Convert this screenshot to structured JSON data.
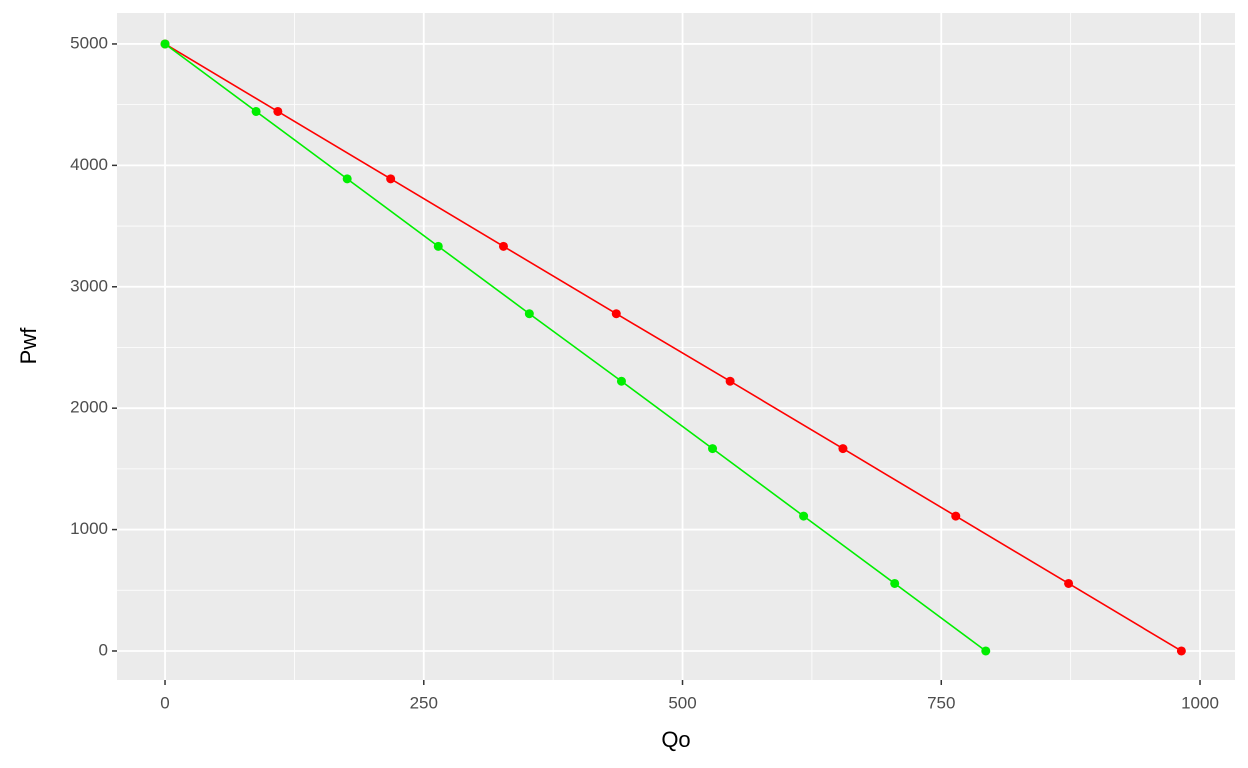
{
  "chart_data": {
    "type": "line",
    "x_label": "Qo",
    "y_label": "Pwf",
    "series": [
      {
        "color": "#ff0000",
        "x": [
          0,
          109,
          218,
          327,
          436,
          546,
          655,
          764,
          873,
          982
        ],
        "values": [
          5000,
          4444,
          3889,
          3333,
          2778,
          2222,
          1667,
          1111,
          556,
          0
        ]
      },
      {
        "color": "#00ee00",
        "x": [
          0,
          88,
          176,
          264,
          352,
          441,
          529,
          617,
          705,
          793
        ],
        "values": [
          5000,
          4444,
          3889,
          3333,
          2778,
          2222,
          1667,
          1111,
          556,
          0
        ]
      }
    ],
    "xlim": [
      -46.4,
      1033.8
    ],
    "ylim": [
      -239,
      5255
    ],
    "xticks": [
      0,
      250,
      500,
      750,
      1000
    ],
    "yticks": [
      0,
      1000,
      2000,
      3000,
      4000,
      5000
    ],
    "grid": true,
    "minor_grid": true,
    "markers": true
  }
}
